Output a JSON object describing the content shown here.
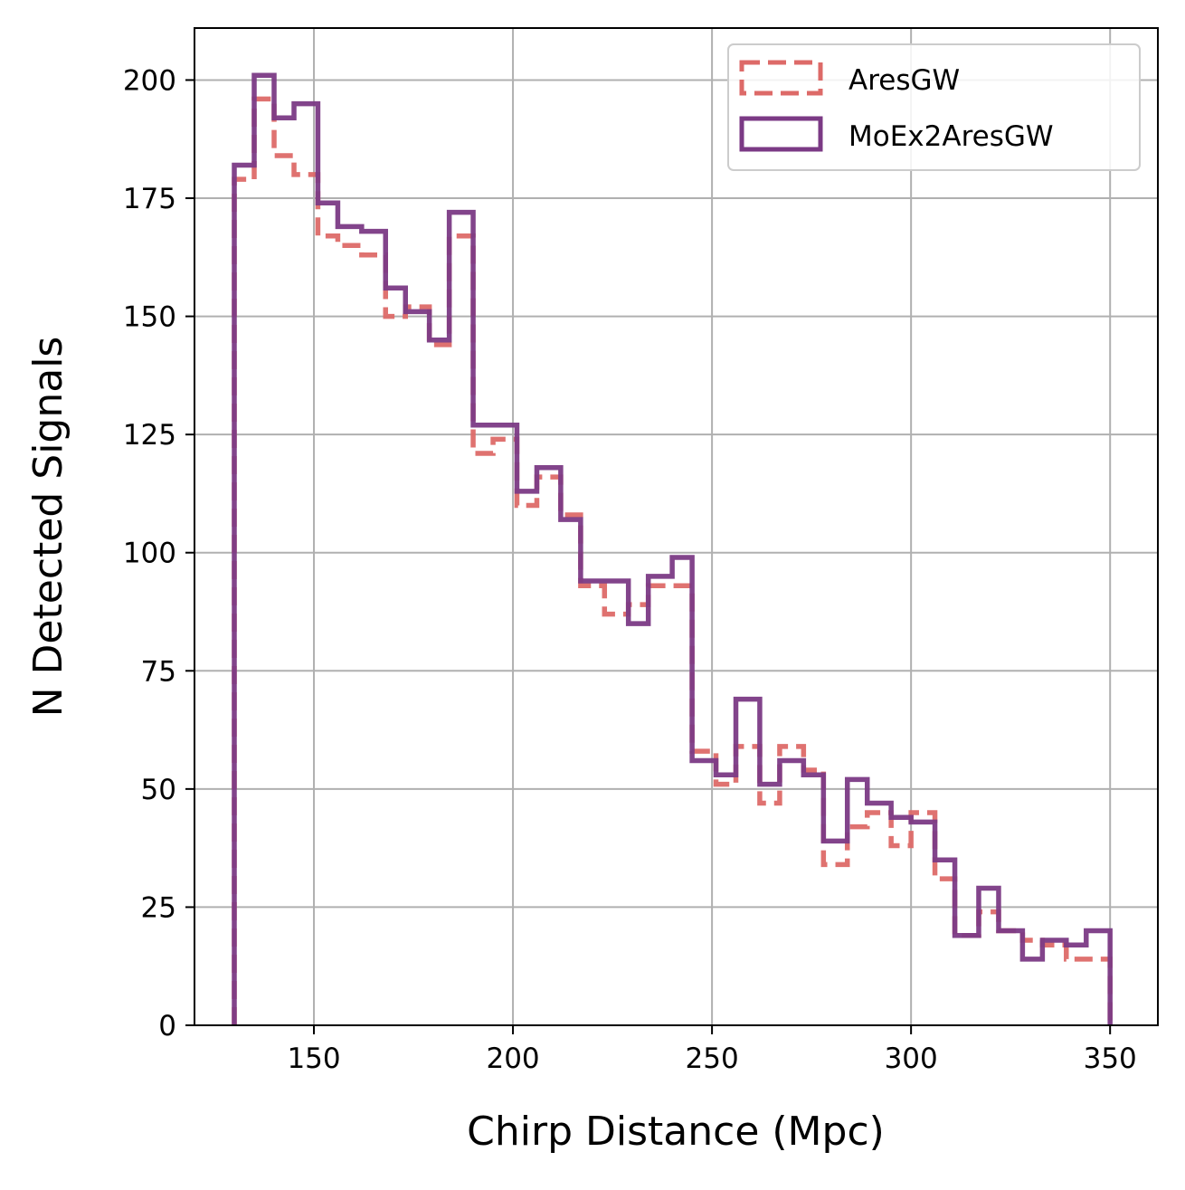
{
  "chart_data": {
    "type": "step-histogram",
    "xlabel": "Chirp Distance (Mpc)",
    "ylabel": "N Detected Signals",
    "xlim": [
      120,
      362
    ],
    "ylim": [
      0,
      211
    ],
    "xticks": [
      150,
      200,
      250,
      300,
      350
    ],
    "yticks": [
      0,
      25,
      50,
      75,
      100,
      125,
      150,
      175,
      200
    ],
    "grid": true,
    "legend_position": "upper right",
    "bin_edges": [
      130,
      135,
      140,
      145,
      151,
      156,
      162,
      168,
      173,
      179,
      184,
      190,
      195,
      201,
      206,
      212,
      217,
      223,
      229,
      234,
      240,
      245,
      251,
      256,
      262,
      267,
      273,
      278,
      284,
      289,
      295,
      300,
      306,
      311,
      317,
      322,
      328,
      333,
      339,
      344,
      350
    ],
    "series": [
      {
        "name": "AresGW",
        "color": "#dd6a68",
        "style": "dashed",
        "values": [
          179,
          196,
          184,
          180,
          167,
          165,
          163,
          150,
          152,
          144,
          167,
          121,
          124,
          110,
          116,
          108,
          93,
          87,
          89,
          93,
          93,
          58,
          51,
          59,
          47,
          59,
          54,
          34,
          42,
          45,
          38,
          45,
          31,
          19,
          24,
          20,
          18,
          17,
          14,
          14
        ]
      },
      {
        "name": "MoEx2AresGW",
        "color": "#7b3a85",
        "style": "solid",
        "values": [
          182,
          201,
          192,
          195,
          174,
          169,
          168,
          156,
          151,
          145,
          172,
          127,
          127,
          113,
          118,
          107,
          94,
          94,
          85,
          95,
          99,
          56,
          53,
          69,
          51,
          56,
          53,
          39,
          52,
          47,
          44,
          43,
          35,
          19,
          29,
          20,
          14,
          18,
          17,
          20
        ]
      }
    ]
  }
}
